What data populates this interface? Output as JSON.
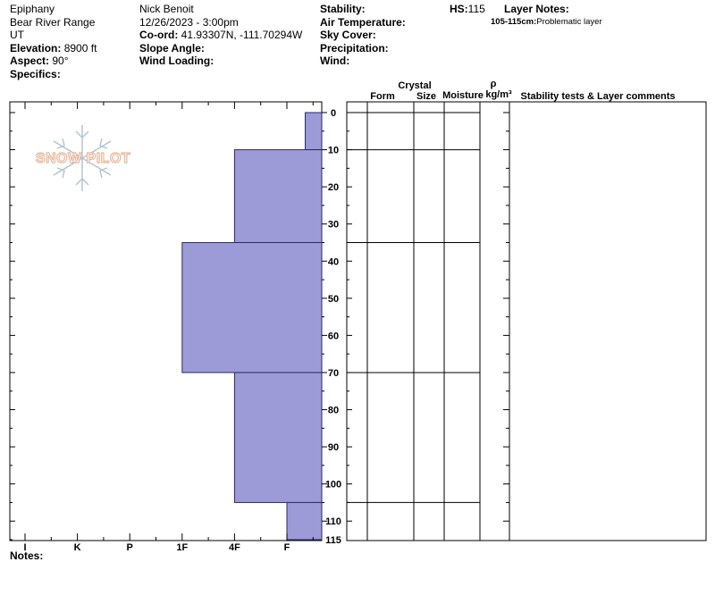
{
  "header": {
    "col1": {
      "location": "Epiphany",
      "range": "Bear River Range",
      "state": "UT",
      "elevation_label": "Elevation:",
      "elevation_value": "8900 ft",
      "aspect_label": "Aspect:",
      "aspect_value": "90°",
      "specifics_label": "Specifics:"
    },
    "col2": {
      "observer": "Nick Benoit",
      "datetime": "12/26/2023 - 3:00pm",
      "coord_label": "Co-ord:",
      "coord_value": "41.93307N, -111.70294W",
      "slope_label": "Slope Angle:",
      "wind_loading_label": "Wind Loading:"
    },
    "col3": {
      "stability_label": "Stability:",
      "air_temp_label": "Air Temperature:",
      "sky_cover_label": "Sky Cover:",
      "precip_label": "Precipitation:",
      "wind_label": "Wind:"
    },
    "hs_label": "HS:",
    "hs_value": "115",
    "layer_notes_label": "Layer Notes:",
    "layer_note_range": "105-115cm:",
    "layer_note_text": "Problematic layer"
  },
  "columns": {
    "crystal": "Crystal",
    "form": "Form",
    "size": "Size",
    "moisture": "Moisture",
    "rho": "ρ",
    "density": "kg/m³",
    "comments": "Stability tests & Layer comments"
  },
  "logo_text": "SNOW PILOT",
  "notes_label": "Notes:",
  "colors": {
    "layer_fill": "#9c9bd7",
    "layer_stroke": "#2a2a6a"
  },
  "chart_data": {
    "type": "bar",
    "orientation": "horizontal",
    "hardness_scale": [
      "I",
      "K",
      "P",
      "1F",
      "4F",
      "F"
    ],
    "depth_ticks": [
      0,
      10,
      20,
      30,
      40,
      50,
      60,
      70,
      80,
      90,
      100,
      110,
      115
    ],
    "ylim": [
      0,
      115
    ],
    "layers": [
      {
        "top": 0,
        "bottom": 10,
        "hardness_index": 5.35
      },
      {
        "top": 10,
        "bottom": 35,
        "hardness_index": 4.0
      },
      {
        "top": 35,
        "bottom": 70,
        "hardness_index": 3.0
      },
      {
        "top": 70,
        "bottom": 105,
        "hardness_index": 4.0
      },
      {
        "top": 105,
        "bottom": 115,
        "hardness_index": 5.0
      }
    ]
  }
}
